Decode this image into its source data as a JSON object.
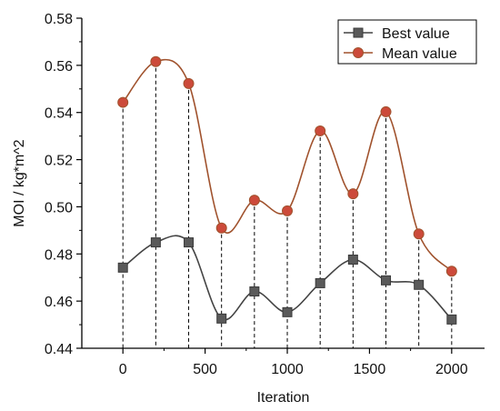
{
  "chart_data": {
    "type": "line",
    "xlabel": "Iteration",
    "ylabel": "MOI / kg*m^2",
    "xlim": [
      -250,
      2200
    ],
    "ylim": [
      0.44,
      0.58
    ],
    "xticks": [
      0,
      500,
      1000,
      1500,
      2000
    ],
    "yticks": [
      0.44,
      0.46,
      0.48,
      0.5,
      0.52,
      0.54,
      0.56,
      0.58
    ],
    "x": [
      0,
      200,
      400,
      600,
      800,
      1000,
      1200,
      1400,
      1600,
      1800,
      2000
    ],
    "series": [
      {
        "name": "Best value",
        "marker": "square",
        "color": "#444444",
        "values": [
          0.4742,
          0.4849,
          0.4849,
          0.4526,
          0.4641,
          0.4553,
          0.4676,
          0.4776,
          0.4688,
          0.4669,
          0.4522
        ]
      },
      {
        "name": "Mean value",
        "marker": "circle",
        "color": "#a0522d",
        "marker_fill": "#cc4a3a",
        "values": [
          0.5443,
          0.5616,
          0.5523,
          0.491,
          0.5028,
          0.4983,
          0.5322,
          0.5055,
          0.5403,
          0.4885,
          0.4727
        ]
      }
    ],
    "drop_lines": "dashed vertical from mean value to x-axis",
    "legend_position": "top-right",
    "grid": false
  }
}
